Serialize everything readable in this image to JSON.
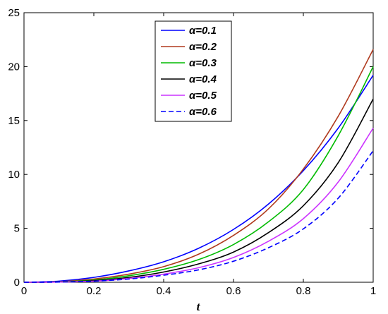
{
  "chart_data": {
    "type": "line",
    "xlabel": "t",
    "ylabel": "",
    "title": "",
    "xlim": [
      0,
      1
    ],
    "ylim": [
      0,
      25
    ],
    "x_ticks": [
      0,
      0.2,
      0.4,
      0.6,
      0.8,
      1
    ],
    "y_ticks": [
      0,
      5,
      10,
      15,
      20,
      25
    ],
    "x_tick_labels": [
      "0",
      "0.2",
      "0.4",
      "0.6",
      "0.8",
      "1"
    ],
    "y_tick_labels": [
      "0",
      "5",
      "10",
      "15",
      "20",
      "25"
    ],
    "grid": false,
    "legend_position": "top-center",
    "x": [
      0,
      0.1,
      0.2,
      0.3,
      0.4,
      0.5,
      0.6,
      0.7,
      0.8,
      0.9,
      1.0
    ],
    "series": [
      {
        "name": "α=0.1",
        "color": "#0000ff",
        "dash": "solid",
        "values": [
          0,
          0.1,
          0.45,
          1.05,
          1.9,
          3.15,
          4.9,
          7.25,
          10.35,
          14.3,
          19.2
        ]
      },
      {
        "name": "α=0.2",
        "color": "#b03a1e",
        "dash": "solid",
        "values": [
          0,
          0.05,
          0.3,
          0.75,
          1.45,
          2.6,
          4.35,
          6.8,
          10.5,
          15.4,
          21.6
        ]
      },
      {
        "name": "α=0.3",
        "color": "#00bb00",
        "dash": "solid",
        "values": [
          0,
          0.04,
          0.2,
          0.6,
          1.2,
          2.1,
          3.5,
          5.6,
          8.6,
          13.6,
          20.0
        ]
      },
      {
        "name": "α=0.4",
        "color": "#000000",
        "dash": "solid",
        "values": [
          0,
          0.03,
          0.15,
          0.45,
          0.95,
          1.7,
          2.8,
          4.6,
          7.1,
          11.1,
          17.0
        ]
      },
      {
        "name": "α=0.5",
        "color": "#cc33ff",
        "dash": "solid",
        "values": [
          0,
          0.02,
          0.1,
          0.35,
          0.75,
          1.35,
          2.3,
          3.8,
          5.9,
          9.3,
          14.3
        ]
      },
      {
        "name": "α=0.6",
        "color": "#0000ff",
        "dash": "dashed",
        "values": [
          0,
          0.02,
          0.1,
          0.3,
          0.65,
          1.15,
          1.95,
          3.2,
          4.95,
          7.8,
          12.2
        ]
      }
    ]
  }
}
